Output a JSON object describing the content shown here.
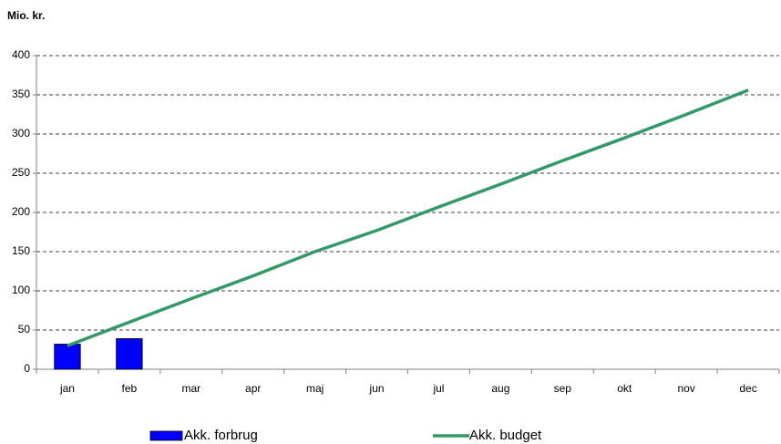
{
  "chart_data": {
    "type": "bar",
    "title": "Mio. kr.",
    "categories": [
      "jan",
      "feb",
      "mar",
      "apr",
      "maj",
      "jun",
      "jul",
      "aug",
      "sep",
      "okt",
      "nov",
      "dec"
    ],
    "series": [
      {
        "name": "Akk. forbrug",
        "type": "bar",
        "color": "#0000ff",
        "values": [
          32,
          39,
          null,
          null,
          null,
          null,
          null,
          null,
          null,
          null,
          null,
          null
        ]
      },
      {
        "name": "Akk. budget",
        "type": "line",
        "color": "#339966",
        "values": [
          30,
          60,
          90,
          119,
          150,
          177,
          207,
          236,
          266,
          295,
          325,
          356
        ]
      }
    ],
    "ylim": [
      0,
      400
    ],
    "yticks": [
      0,
      50,
      100,
      150,
      200,
      250,
      300,
      350,
      400
    ],
    "grid": true,
    "legend": "bottom"
  }
}
